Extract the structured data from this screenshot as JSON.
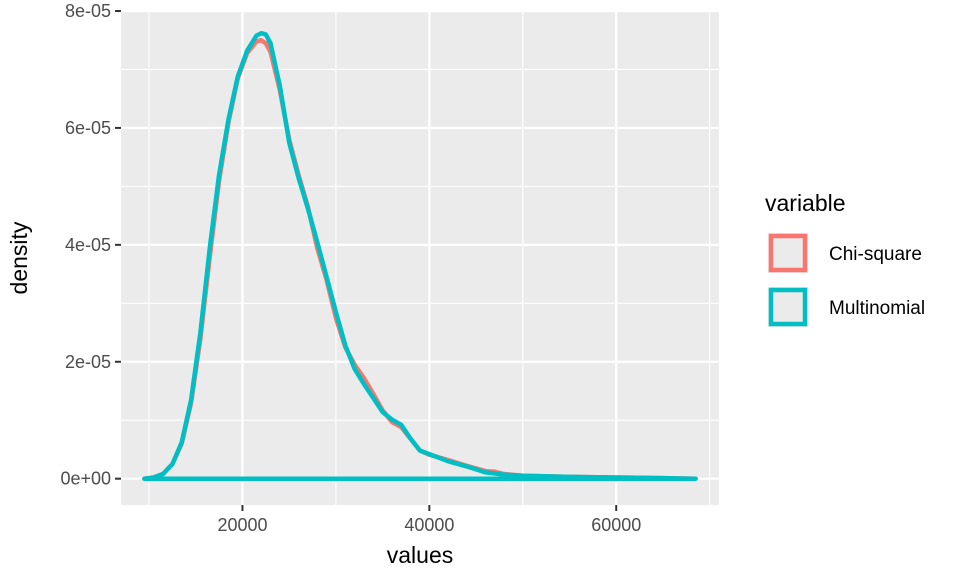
{
  "chart_data": {
    "type": "line",
    "xlabel": "values",
    "ylabel": "density",
    "xlim": [
      7000,
      71000
    ],
    "ylim": [
      -4.5e-06,
      8e-05
    ],
    "x_ticks": [
      20000,
      40000,
      60000
    ],
    "x_tick_labels": [
      "20000",
      "40000",
      "60000"
    ],
    "y_ticks": [
      0,
      2e-05,
      4e-05,
      6e-05,
      8e-05
    ],
    "y_tick_labels": [
      "0e+00",
      "2e-05",
      "4e-05",
      "6e-05",
      "8e-05"
    ],
    "grid": true,
    "legend": {
      "title": "variable",
      "position": "right"
    },
    "series": [
      {
        "name": "Chi-square",
        "color": "#F8766D",
        "points": [
          [
            9500,
            0
          ],
          [
            10500,
            2e-07
          ],
          [
            11500,
            8e-07
          ],
          [
            12500,
            2.5e-06
          ],
          [
            13500,
            6e-06
          ],
          [
            14500,
            1.3e-05
          ],
          [
            15500,
            2.4e-05
          ],
          [
            16500,
            3.8e-05
          ],
          [
            17500,
            5.1e-05
          ],
          [
            18500,
            6.1e-05
          ],
          [
            19500,
            6.85e-05
          ],
          [
            20500,
            7.28e-05
          ],
          [
            21500,
            7.48e-05
          ],
          [
            22000,
            7.5e-05
          ],
          [
            22500,
            7.45e-05
          ],
          [
            23000,
            7.3e-05
          ],
          [
            24000,
            6.65e-05
          ],
          [
            25000,
            5.8e-05
          ],
          [
            26000,
            5.2e-05
          ],
          [
            27000,
            4.65e-05
          ],
          [
            28000,
            3.95e-05
          ],
          [
            29000,
            3.4e-05
          ],
          [
            30000,
            2.75e-05
          ],
          [
            31000,
            2.25e-05
          ],
          [
            32000,
            1.95e-05
          ],
          [
            33000,
            1.72e-05
          ],
          [
            34000,
            1.45e-05
          ],
          [
            35000,
            1.17e-05
          ],
          [
            36000,
            9.7e-06
          ],
          [
            37000,
            8.8e-06
          ],
          [
            38000,
            6.8e-06
          ],
          [
            39000,
            4.8e-06
          ],
          [
            40000,
            4.1e-06
          ],
          [
            42000,
            3.2e-06
          ],
          [
            44000,
            2.2e-06
          ],
          [
            46000,
            1.3e-06
          ],
          [
            47000,
            1.2e-06
          ],
          [
            48000,
            8e-07
          ],
          [
            50000,
            5e-07
          ],
          [
            55000,
            3e-07
          ],
          [
            60000,
            2e-07
          ],
          [
            65000,
            1e-07
          ],
          [
            68500,
            0
          ],
          [
            68500,
            0
          ],
          [
            9500,
            0
          ]
        ]
      },
      {
        "name": "Multinomial",
        "color": "#00BFC4",
        "points": [
          [
            9500,
            0
          ],
          [
            10500,
            2e-07
          ],
          [
            11500,
            8e-07
          ],
          [
            12500,
            2.5e-06
          ],
          [
            13500,
            6.2e-06
          ],
          [
            14500,
            1.35e-05
          ],
          [
            15500,
            2.5e-05
          ],
          [
            16500,
            3.95e-05
          ],
          [
            17500,
            5.2e-05
          ],
          [
            18500,
            6.15e-05
          ],
          [
            19500,
            6.88e-05
          ],
          [
            20500,
            7.32e-05
          ],
          [
            21500,
            7.58e-05
          ],
          [
            22000,
            7.62e-05
          ],
          [
            22500,
            7.6e-05
          ],
          [
            23000,
            7.45e-05
          ],
          [
            24000,
            6.72e-05
          ],
          [
            25000,
            5.75e-05
          ],
          [
            26000,
            5.15e-05
          ],
          [
            27000,
            4.62e-05
          ],
          [
            28000,
            4.05e-05
          ],
          [
            29000,
            3.45e-05
          ],
          [
            30000,
            2.85e-05
          ],
          [
            31000,
            2.28e-05
          ],
          [
            32000,
            1.88e-05
          ],
          [
            33000,
            1.62e-05
          ],
          [
            34000,
            1.38e-05
          ],
          [
            35000,
            1.14e-05
          ],
          [
            36000,
            1.01e-05
          ],
          [
            37000,
            9.2e-06
          ],
          [
            38000,
            6.8e-06
          ],
          [
            39000,
            4.8e-06
          ],
          [
            40000,
            4.2e-06
          ],
          [
            42000,
            3e-06
          ],
          [
            44000,
            2.1e-06
          ],
          [
            46000,
            1.1e-06
          ],
          [
            48000,
            7e-07
          ],
          [
            50000,
            5e-07
          ],
          [
            55000,
            3e-07
          ],
          [
            60000,
            2e-07
          ],
          [
            65000,
            1e-07
          ],
          [
            68500,
            0
          ],
          [
            68500,
            0
          ],
          [
            9500,
            0
          ]
        ]
      }
    ]
  }
}
